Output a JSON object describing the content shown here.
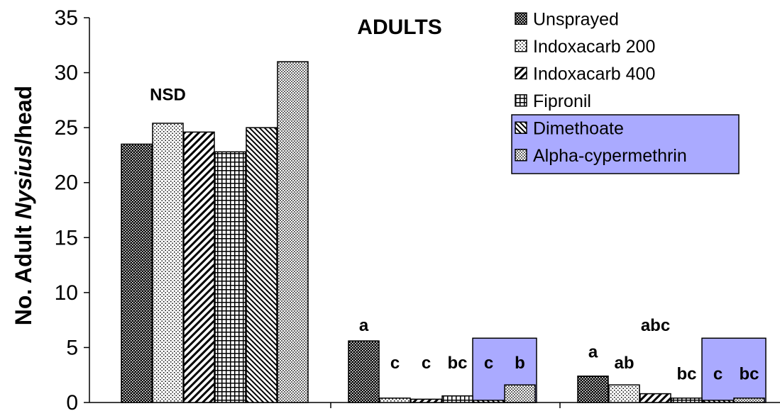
{
  "chart_data": {
    "type": "bar",
    "title": "ADULTS",
    "ylabel": "No. Adult Nysius/head",
    "ylabel_parts": [
      "No. Adult ",
      "Nysius",
      "/head"
    ],
    "xlabel": "",
    "ylim": [
      0,
      35
    ],
    "yticks": [
      0,
      5,
      10,
      15,
      20,
      25,
      30,
      35
    ],
    "categories": [
      "",
      "",
      ""
    ],
    "legend_position": "top-right",
    "series": [
      {
        "name": "Unsprayed",
        "pattern": "dots-dark",
        "values": [
          23.5,
          5.6,
          2.4
        ]
      },
      {
        "name": "Indoxacarb 200",
        "pattern": "dots-light",
        "values": [
          25.4,
          0.4,
          1.6
        ]
      },
      {
        "name": "Indoxacarb 400",
        "pattern": "diag",
        "values": [
          24.6,
          0.3,
          0.8
        ]
      },
      {
        "name": "Fipronil",
        "pattern": "grid",
        "values": [
          22.8,
          0.6,
          0.4
        ]
      },
      {
        "name": "Dimethoate",
        "pattern": "diag-fine",
        "values": [
          25.0,
          0.2,
          0.2
        ]
      },
      {
        "name": "Alpha-cypermethrin",
        "pattern": "dots-fine",
        "values": [
          31.0,
          1.6,
          0.4
        ]
      }
    ],
    "annotations": [
      {
        "text": "NSD",
        "group": 0,
        "series": 1,
        "y": 27.5
      },
      {
        "text": "a",
        "group": 1,
        "series": 0,
        "y": 6.5
      },
      {
        "text": "c",
        "group": 1,
        "series": 1,
        "y": 3.1
      },
      {
        "text": "c",
        "group": 1,
        "series": 2,
        "y": 3.1
      },
      {
        "text": "bc",
        "group": 1,
        "series": 3,
        "y": 3.1
      },
      {
        "text": "c",
        "group": 1,
        "series": 4,
        "y": 3.1
      },
      {
        "text": "b",
        "group": 1,
        "series": 5,
        "y": 3.1
      },
      {
        "text": "a",
        "group": 2,
        "series": 0,
        "y": 4.1
      },
      {
        "text": "ab",
        "group": 2,
        "series": 1,
        "y": 3.1
      },
      {
        "text": "abc",
        "group": 2,
        "series": 2,
        "y": 6.5
      },
      {
        "text": "bc",
        "group": 2,
        "series": 3,
        "y": 2.1
      },
      {
        "text": "c",
        "group": 2,
        "series": 4,
        "y": 2.1
      },
      {
        "text": "bc",
        "group": 2,
        "series": 5,
        "y": 2.1
      }
    ],
    "highlight_color": "#aaaaff",
    "highlighted_series": [
      4,
      5
    ]
  }
}
